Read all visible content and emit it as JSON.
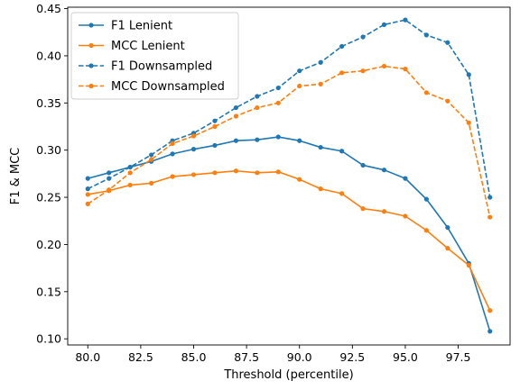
{
  "chart_data": {
    "type": "line",
    "title": "",
    "xlabel": "Threshold (percentile)",
    "ylabel": "F1 & MCC",
    "xlim": [
      79.05,
      99.95
    ],
    "ylim": [
      0.0935,
      0.4515
    ],
    "xticks": [
      "80.0",
      "82.5",
      "85.0",
      "87.5",
      "90.0",
      "92.5",
      "95.0",
      "97.5"
    ],
    "xtick_values": [
      80.0,
      82.5,
      85.0,
      87.5,
      90.0,
      92.5,
      95.0,
      97.5
    ],
    "yticks": [
      "0.10",
      "0.15",
      "0.20",
      "0.25",
      "0.30",
      "0.35",
      "0.40",
      "0.45"
    ],
    "ytick_values": [
      0.1,
      0.15,
      0.2,
      0.25,
      0.3,
      0.35,
      0.4,
      0.45
    ],
    "grid": false,
    "legend_position": "top-left",
    "x": [
      80,
      81,
      82,
      83,
      84,
      85,
      86,
      87,
      88,
      89,
      90,
      91,
      92,
      93,
      94,
      95,
      96,
      97,
      98,
      99
    ],
    "series": [
      {
        "name": "F1 Lenient",
        "color": "#1f77b4",
        "style": "solid",
        "values": [
          0.27,
          0.276,
          0.282,
          0.288,
          0.296,
          0.301,
          0.305,
          0.31,
          0.311,
          0.314,
          0.31,
          0.303,
          0.299,
          0.284,
          0.279,
          0.27,
          0.248,
          0.218,
          0.18,
          0.108
        ]
      },
      {
        "name": "MCC Lenient",
        "color": "#ff7f0e",
        "style": "solid",
        "values": [
          0.253,
          0.257,
          0.263,
          0.265,
          0.272,
          0.274,
          0.276,
          0.278,
          0.276,
          0.277,
          0.269,
          0.259,
          0.254,
          0.238,
          0.235,
          0.23,
          0.215,
          0.196,
          0.178,
          0.13
        ]
      },
      {
        "name": "F1 Downsampled",
        "color": "#1f77b4",
        "style": "dashed",
        "values": [
          0.259,
          0.27,
          0.282,
          0.295,
          0.31,
          0.318,
          0.331,
          0.345,
          0.357,
          0.366,
          0.384,
          0.393,
          0.41,
          0.42,
          0.433,
          0.438,
          0.422,
          0.414,
          0.38,
          0.25
        ]
      },
      {
        "name": "MCC Downsampled",
        "color": "#ff7f0e",
        "style": "dashed",
        "values": [
          0.243,
          0.258,
          0.276,
          0.29,
          0.307,
          0.315,
          0.325,
          0.336,
          0.345,
          0.35,
          0.368,
          0.37,
          0.382,
          0.384,
          0.389,
          0.386,
          0.361,
          0.352,
          0.329,
          0.229
        ]
      }
    ]
  }
}
